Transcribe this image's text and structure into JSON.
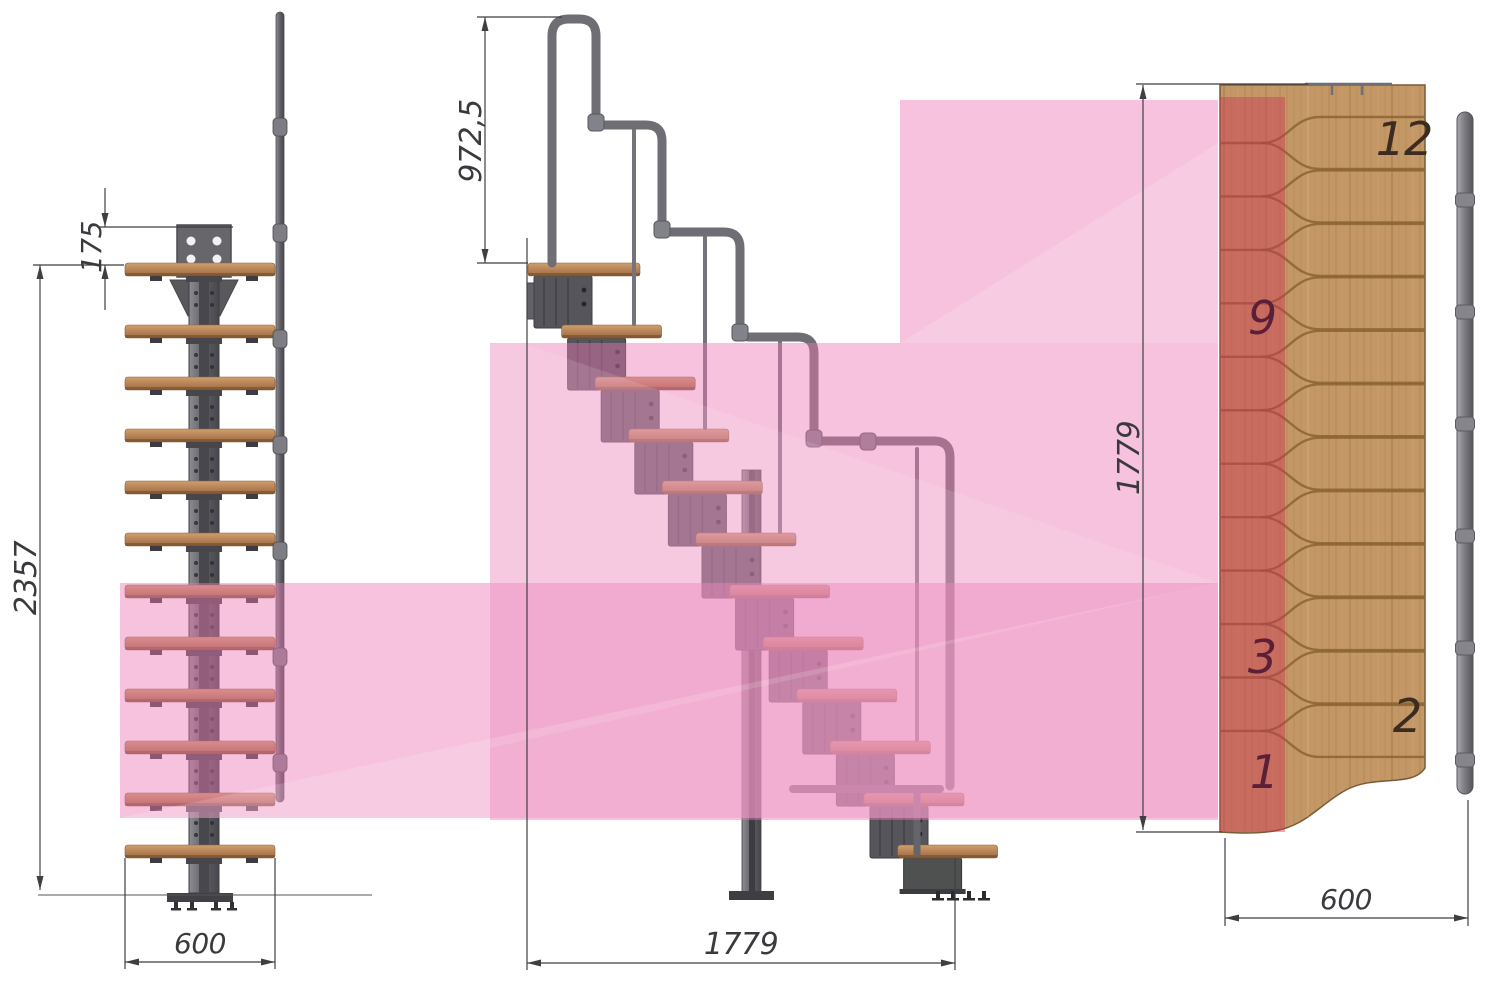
{
  "dimensions": {
    "front_bracket_offset": "175",
    "front_total_height": "2357",
    "front_tread_width": "600",
    "side_handrail_height": "972,5",
    "side_total_run": "1779",
    "plan_total_length": "1779",
    "plan_tread_width": "600"
  },
  "plan_tread_numbers": [
    "12",
    "9",
    "3",
    "2",
    "1"
  ],
  "colors": {
    "highlight_pink": "#ec78b4",
    "highlight_red": "#cd3255",
    "tread_wood": "#b9865a",
    "panel_wood": "#c49766",
    "steel": "#6b6b70"
  }
}
